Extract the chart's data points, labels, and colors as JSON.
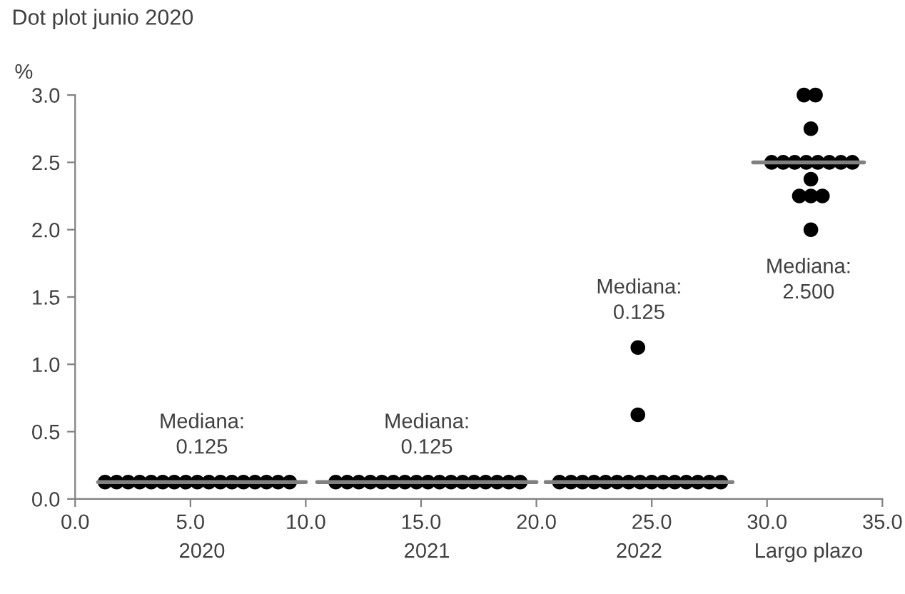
{
  "chart_data": {
    "type": "scatter",
    "title": "Dot plot junio 2020",
    "ylabel": "%",
    "series": [
      {
        "color": "#000000",
        "marker": "circle",
        "x": [
          1.3,
          1.8,
          2.3,
          2.8,
          3.3,
          3.8,
          4.3,
          4.8,
          5.3,
          5.8,
          6.3,
          6.8,
          7.3,
          7.8,
          8.3,
          8.8,
          9.3,
          11.3,
          11.8,
          12.3,
          12.8,
          13.3,
          13.8,
          14.3,
          14.8,
          15.3,
          15.8,
          16.3,
          16.8,
          17.3,
          17.8,
          18.3,
          18.8,
          19.3,
          21.0,
          21.5,
          22.0,
          22.5,
          23.0,
          23.5,
          24.0,
          24.5,
          25.0,
          25.5,
          26.0,
          26.5,
          27.0,
          27.5,
          28.0,
          24.4,
          24.4,
          31.6,
          32.1,
          31.9,
          30.2,
          30.7,
          31.2,
          31.7,
          32.2,
          32.7,
          33.2,
          33.7,
          31.9,
          31.4,
          31.9,
          32.4,
          31.9
        ],
        "values": [
          0.125,
          0.125,
          0.125,
          0.125,
          0.125,
          0.125,
          0.125,
          0.125,
          0.125,
          0.125,
          0.125,
          0.125,
          0.125,
          0.125,
          0.125,
          0.125,
          0.125,
          0.125,
          0.125,
          0.125,
          0.125,
          0.125,
          0.125,
          0.125,
          0.125,
          0.125,
          0.125,
          0.125,
          0.125,
          0.125,
          0.125,
          0.125,
          0.125,
          0.125,
          0.125,
          0.125,
          0.125,
          0.125,
          0.125,
          0.125,
          0.125,
          0.125,
          0.125,
          0.125,
          0.125,
          0.125,
          0.125,
          0.125,
          0.125,
          0.625,
          1.125,
          3.0,
          3.0,
          2.75,
          2.5,
          2.5,
          2.5,
          2.5,
          2.5,
          2.5,
          2.5,
          2.5,
          2.375,
          2.25,
          2.25,
          2.25,
          2.0
        ]
      },
      {
        "type": "line",
        "color": "#808080",
        "marker": "none",
        "x": [
          1.0,
          10.0
        ],
        "values": [
          0.125,
          0.125
        ]
      },
      {
        "type": "line",
        "color": "#808080",
        "marker": "none",
        "x": [
          10.5,
          20.0
        ],
        "values": [
          0.125,
          0.125
        ]
      },
      {
        "type": "line",
        "color": "#808080",
        "marker": "none",
        "x": [
          20.4,
          28.5
        ],
        "values": [
          0.125,
          0.125
        ]
      },
      {
        "type": "line",
        "color": "#808080",
        "marker": "none",
        "x": [
          29.4,
          34.2
        ],
        "values": [
          2.5,
          2.5
        ]
      }
    ],
    "annotations": [
      "Mediana:\n0.125",
      "Mediana:\n0.125",
      "Mediana:\n0.125",
      "Mediana:\n2.500",
      "2020",
      "2021",
      "2022",
      "Largo plazo"
    ],
    "xlim": [
      0,
      35
    ],
    "ylim": [
      0,
      3.0
    ],
    "xticks": [
      {
        "value": 0,
        "label": "0.0"
      },
      {
        "value": 5,
        "label": "5.0"
      },
      {
        "value": 10,
        "label": "10.0"
      },
      {
        "value": 15,
        "label": "15.0"
      },
      {
        "value": 20,
        "label": "20.0"
      },
      {
        "value": 25,
        "label": "25.0"
      },
      {
        "value": 30,
        "label": "30.0"
      },
      {
        "value": 35,
        "label": "35.0"
      }
    ],
    "yticks": [
      {
        "value": 0,
        "label": "0.0"
      },
      {
        "value": 0.5,
        "label": "0.5"
      },
      {
        "value": 1.0,
        "label": "1.0"
      },
      {
        "value": 1.5,
        "label": "1.5"
      },
      {
        "value": 2.0,
        "label": "2.0"
      },
      {
        "value": 2.5,
        "label": "2.5"
      },
      {
        "value": 3.0,
        "label": "3.0"
      }
    ],
    "grid": false
  }
}
